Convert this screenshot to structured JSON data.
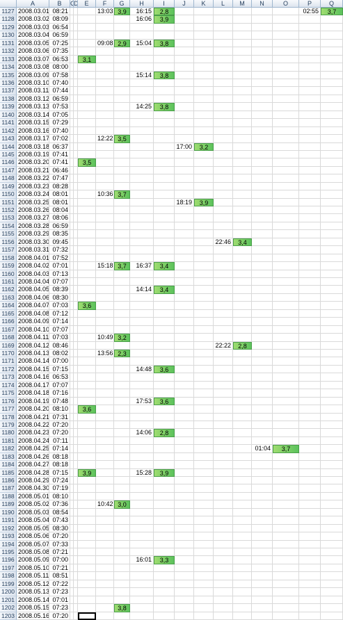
{
  "columns": [
    "A",
    "B",
    "C",
    "D",
    "E",
    "F",
    "G",
    "H",
    "I",
    "J",
    "K",
    "L",
    "M",
    "N",
    "O",
    "P",
    "Q"
  ],
  "rows": [
    {
      "num": 1127,
      "date": "2008.03.01",
      "time": "08:21",
      "cells": {
        "F": "13:03",
        "G": "3,9",
        "H": "16:15",
        "I": "2,8",
        "P": "02:55",
        "Q": "3,7"
      }
    },
    {
      "num": 1128,
      "date": "2008.03.02",
      "time": "08:09",
      "cells": {
        "H": "16:06",
        "I": "3,9"
      }
    },
    {
      "num": 1129,
      "date": "2008.03.03",
      "time": "06:54",
      "cells": {}
    },
    {
      "num": 1130,
      "date": "2008.03.04",
      "time": "06:59",
      "cells": {}
    },
    {
      "num": 1131,
      "date": "2008.03.05",
      "time": "07:25",
      "cells": {
        "F": "09:08",
        "G": "2,9",
        "H": "15:04",
        "I": "3,8"
      }
    },
    {
      "num": 1132,
      "date": "2008.03.06",
      "time": "07:35",
      "cells": {}
    },
    {
      "num": 1133,
      "date": "2008.03.07",
      "time": "06:53",
      "cells": {
        "E": "3,1"
      }
    },
    {
      "num": 1134,
      "date": "2008.03.08",
      "time": "08:00",
      "cells": {}
    },
    {
      "num": 1135,
      "date": "2008.03.09",
      "time": "07:58",
      "cells": {
        "H": "15:14",
        "I": "3,8"
      }
    },
    {
      "num": 1136,
      "date": "2008.03.10",
      "time": "07:40",
      "cells": {}
    },
    {
      "num": 1137,
      "date": "2008.03.11",
      "time": "07:44",
      "cells": {}
    },
    {
      "num": 1138,
      "date": "2008.03.12",
      "time": "06:59",
      "cells": {}
    },
    {
      "num": 1139,
      "date": "2008.03.13",
      "time": "07:53",
      "cells": {
        "H": "14:25",
        "I": "3,8"
      }
    },
    {
      "num": 1140,
      "date": "2008.03.14",
      "time": "07:05",
      "cells": {}
    },
    {
      "num": 1141,
      "date": "2008.03.15",
      "time": "07:29",
      "cells": {}
    },
    {
      "num": 1142,
      "date": "2008.03.16",
      "time": "07:40",
      "cells": {}
    },
    {
      "num": 1143,
      "date": "2008.03.17",
      "time": "07:02",
      "cells": {
        "F": "12:22",
        "G": "3,5"
      }
    },
    {
      "num": 1144,
      "date": "2008.03.18",
      "time": "06:37",
      "cells": {
        "J": "17:00",
        "K": "3,2"
      }
    },
    {
      "num": 1145,
      "date": "2008.03.19",
      "time": "07:41",
      "cells": {}
    },
    {
      "num": 1146,
      "date": "2008.03.20",
      "time": "07:41",
      "cells": {
        "E": "3,5"
      }
    },
    {
      "num": 1147,
      "date": "2008.03.21",
      "time": "06:46",
      "cells": {}
    },
    {
      "num": 1148,
      "date": "2008.03.22",
      "time": "07:47",
      "cells": {}
    },
    {
      "num": 1149,
      "date": "2008.03.23",
      "time": "08:28",
      "cells": {}
    },
    {
      "num": 1150,
      "date": "2008.03.24",
      "time": "08:01",
      "cells": {
        "F": "10:36",
        "G": "3,7"
      }
    },
    {
      "num": 1151,
      "date": "2008.03.25",
      "time": "08:01",
      "cells": {
        "J": "18:19",
        "K": "3,9"
      }
    },
    {
      "num": 1152,
      "date": "2008.03.26",
      "time": "08:04",
      "cells": {}
    },
    {
      "num": 1153,
      "date": "2008.03.27",
      "time": "08:06",
      "cells": {}
    },
    {
      "num": 1154,
      "date": "2008.03.28",
      "time": "06:59",
      "cells": {}
    },
    {
      "num": 1155,
      "date": "2008.03.29",
      "time": "08:35",
      "cells": {}
    },
    {
      "num": 1156,
      "date": "2008.03.30",
      "time": "09:45",
      "cells": {
        "L": "22:46",
        "M": "3,4"
      }
    },
    {
      "num": 1157,
      "date": "2008.03.31",
      "time": "07:32",
      "cells": {}
    },
    {
      "num": 1158,
      "date": "2008.04.01",
      "time": "07:52",
      "cells": {}
    },
    {
      "num": 1159,
      "date": "2008.04.02",
      "time": "07:01",
      "cells": {
        "F": "15:18",
        "G": "3,7",
        "H": "16:37",
        "I": "3,4"
      }
    },
    {
      "num": 1160,
      "date": "2008.04.03",
      "time": "07:13",
      "cells": {}
    },
    {
      "num": 1161,
      "date": "2008.04.04",
      "time": "07:07",
      "cells": {}
    },
    {
      "num": 1162,
      "date": "2008.04.05",
      "time": "08:39",
      "cells": {
        "H": "14:14",
        "I": "3,4"
      }
    },
    {
      "num": 1163,
      "date": "2008.04.06",
      "time": "08:30",
      "cells": {}
    },
    {
      "num": 1164,
      "date": "2008.04.07",
      "time": "07:03",
      "cells": {
        "E": "3,6"
      }
    },
    {
      "num": 1165,
      "date": "2008.04.08",
      "time": "07:12",
      "cells": {}
    },
    {
      "num": 1166,
      "date": "2008.04.09",
      "time": "07:14",
      "cells": {}
    },
    {
      "num": 1167,
      "date": "2008.04.10",
      "time": "07:07",
      "cells": {}
    },
    {
      "num": 1168,
      "date": "2008.04.11",
      "time": "07:03",
      "cells": {
        "F": "10:49",
        "G": "3,2"
      }
    },
    {
      "num": 1169,
      "date": "2008.04.12",
      "time": "08:46",
      "cells": {
        "L": "22:22",
        "M": "2,8"
      }
    },
    {
      "num": 1170,
      "date": "2008.04.13",
      "time": "08:02",
      "cells": {
        "F": "13:56",
        "G": "2,3"
      }
    },
    {
      "num": 1171,
      "date": "2008.04.14",
      "time": "07:00",
      "cells": {}
    },
    {
      "num": 1172,
      "date": "2008.04.15",
      "time": "07:15",
      "cells": {
        "H": "14:48",
        "I": "3,6"
      }
    },
    {
      "num": 1173,
      "date": "2008.04.16",
      "time": "06:53",
      "cells": {}
    },
    {
      "num": 1174,
      "date": "2008.04.17",
      "time": "07:07",
      "cells": {}
    },
    {
      "num": 1175,
      "date": "2008.04.18",
      "time": "07:16",
      "cells": {}
    },
    {
      "num": 1176,
      "date": "2008.04.19",
      "time": "07:48",
      "cells": {
        "H": "17:53",
        "I": "3,6"
      }
    },
    {
      "num": 1177,
      "date": "2008.04.20",
      "time": "08:10",
      "cells": {
        "E": "3,6"
      }
    },
    {
      "num": 1178,
      "date": "2008.04.21",
      "time": "07:31",
      "cells": {}
    },
    {
      "num": 1179,
      "date": "2008.04.22",
      "time": "07:20",
      "cells": {}
    },
    {
      "num": 1180,
      "date": "2008.04.23",
      "time": "07:20",
      "cells": {
        "H": "14:06",
        "I": "2,8"
      }
    },
    {
      "num": 1181,
      "date": "2008.04.24",
      "time": "07:11",
      "cells": {}
    },
    {
      "num": 1182,
      "date": "2008.04.25",
      "time": "07:14",
      "cells": {
        "N": "01:04",
        "O": "3,7"
      }
    },
    {
      "num": 1183,
      "date": "2008.04.26",
      "time": "08:18",
      "cells": {}
    },
    {
      "num": 1184,
      "date": "2008.04.27",
      "time": "08:18",
      "cells": {}
    },
    {
      "num": 1185,
      "date": "2008.04.28",
      "time": "07:15",
      "cells": {
        "E": "3,9",
        "H": "15:28",
        "I": "3,9"
      }
    },
    {
      "num": 1186,
      "date": "2008.04.29",
      "time": "07:24",
      "cells": {}
    },
    {
      "num": 1187,
      "date": "2008.04.30",
      "time": "07:19",
      "cells": {}
    },
    {
      "num": 1188,
      "date": "2008.05.01",
      "time": "08:10",
      "cells": {}
    },
    {
      "num": 1189,
      "date": "2008.05.02",
      "time": "07:36",
      "cells": {
        "F": "10:42",
        "G": "3,0"
      }
    },
    {
      "num": 1190,
      "date": "2008.05.03",
      "time": "08:54",
      "cells": {}
    },
    {
      "num": 1191,
      "date": "2008.05.04",
      "time": "07:43",
      "cells": {}
    },
    {
      "num": 1192,
      "date": "2008.05.05",
      "time": "08:30",
      "cells": {}
    },
    {
      "num": 1193,
      "date": "2008.05.06",
      "time": "07:20",
      "cells": {}
    },
    {
      "num": 1194,
      "date": "2008.05.07",
      "time": "07:33",
      "cells": {}
    },
    {
      "num": 1195,
      "date": "2008.05.08",
      "time": "07:21",
      "cells": {}
    },
    {
      "num": 1196,
      "date": "2008.05.09",
      "time": "07:00",
      "cells": {
        "H": "16:01",
        "I": "3,3"
      }
    },
    {
      "num": 1197,
      "date": "2008.05.10",
      "time": "07:21",
      "cells": {}
    },
    {
      "num": 1198,
      "date": "2008.05.11",
      "time": "08:51",
      "cells": {}
    },
    {
      "num": 1199,
      "date": "2008.05.12",
      "time": "07:22",
      "cells": {}
    },
    {
      "num": 1200,
      "date": "2008.05.13",
      "time": "07:23",
      "cells": {}
    },
    {
      "num": 1201,
      "date": "2008.05.14",
      "time": "07:01",
      "cells": {}
    },
    {
      "num": 1202,
      "date": "2008.05.15",
      "time": "07:23",
      "cells": {
        "G": "3,8"
      }
    },
    {
      "num": 1203,
      "date": "2008.05.16",
      "time": "07:20",
      "cells": {}
    }
  ]
}
